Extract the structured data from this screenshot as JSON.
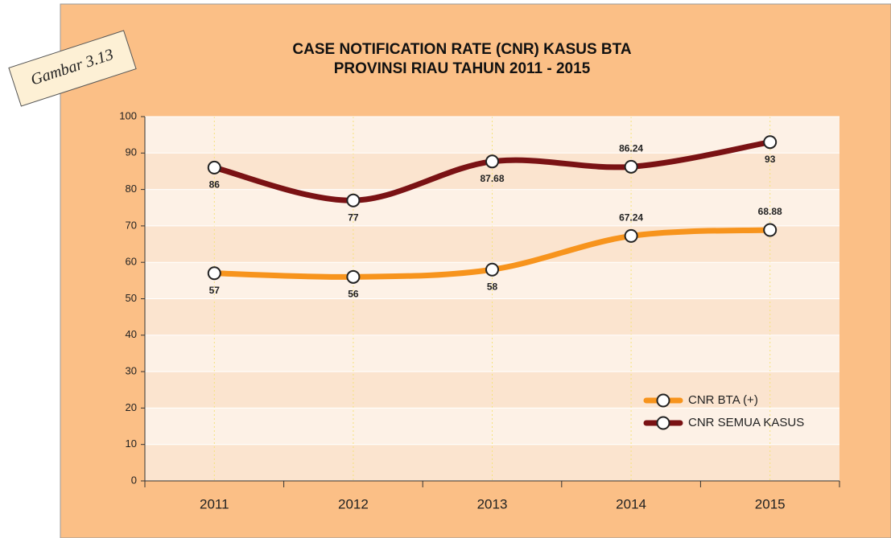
{
  "chart_data": {
    "type": "line",
    "title": "CASE NOTIFICATION RATE (CNR) KASUS BTA",
    "subtitle": "PROVINSI RIAU TAHUN 2011 - 2015",
    "annotation": "Gambar 3.13",
    "categories": [
      "2011",
      "2012",
      "2013",
      "2014",
      "2015"
    ],
    "series": [
      {
        "name": "CNR BTA (+)",
        "color": "#f7941d",
        "values": [
          57,
          56,
          58,
          67.24,
          68.88
        ]
      },
      {
        "name": "CNR SEMUA KASUS",
        "color": "#7a1214",
        "values": [
          86,
          77,
          87.68,
          86.24,
          93
        ]
      }
    ],
    "ylim": [
      0,
      100
    ],
    "yticks": [
      0,
      10,
      20,
      30,
      40,
      50,
      60,
      70,
      80,
      90,
      100
    ],
    "grid": true,
    "legend": "lower right"
  }
}
